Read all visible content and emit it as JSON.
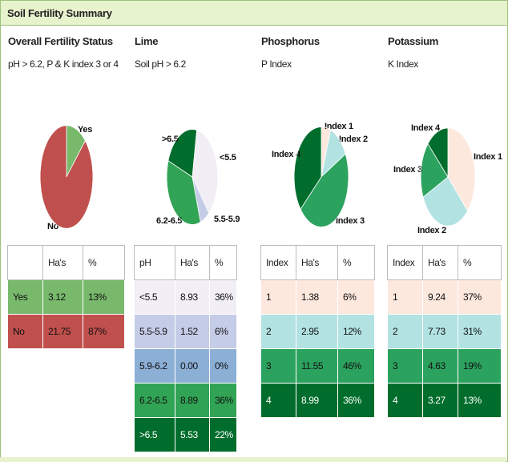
{
  "header": {
    "title": "Soil Fertility Summary"
  },
  "colors": {
    "green_light": "#78b96c",
    "red": "#c0504d",
    "lavender": "#f1eef6",
    "blue_lavender": "#c5cce7",
    "steel_blue": "#8cafd6",
    "green_mid": "#31a354",
    "green_dark": "#006d2c",
    "peach": "#fde8de",
    "light_cyan": "#b2e2e2",
    "teal_green": "#2ca25f"
  },
  "chart_data": [
    {
      "type": "pie",
      "title": "Overall Fertility Status",
      "subtitle": "pH > 6.2, P & K index 3 or 4",
      "slices": [
        {
          "label": "Yes",
          "value": 3.12,
          "color": "#78b96c"
        },
        {
          "label": "No",
          "value": 21.75,
          "color": "#c0504d"
        }
      ],
      "table": {
        "columns": [
          "",
          "Ha's",
          "%"
        ],
        "rows": [
          {
            "cells": [
              "Yes",
              "3.12",
              "13%"
            ],
            "bg": "#78b96c",
            "fg": "#111111"
          },
          {
            "cells": [
              "No",
              "21.75",
              "87%"
            ],
            "bg": "#c0504d",
            "fg": "#111111"
          }
        ]
      }
    },
    {
      "type": "pie",
      "title": "Lime",
      "subtitle": "Soil pH > 6.2",
      "slices": [
        {
          "label": "<5.5",
          "value": 8.93,
          "color": "#f1eef6"
        },
        {
          "label": "5.5-5.9",
          "value": 1.52,
          "color": "#c5cce7"
        },
        {
          "label": "5.9-6.2",
          "value": 0.0,
          "color": "#8cafd6"
        },
        {
          "label": "6.2-6.5",
          "value": 8.89,
          "color": "#31a354"
        },
        {
          "label": ">6.5",
          "value": 5.53,
          "color": "#006d2c"
        }
      ],
      "table": {
        "columns": [
          "pH",
          "Ha's",
          "%"
        ],
        "rows": [
          {
            "cells": [
              "<5.5",
              "8.93",
              "36%"
            ],
            "bg": "#f1eef6",
            "fg": "#111111"
          },
          {
            "cells": [
              "5.5-5.9",
              "1.52",
              "6%"
            ],
            "bg": "#c5cce7",
            "fg": "#111111"
          },
          {
            "cells": [
              "5.9-6.2",
              "0.00",
              "0%"
            ],
            "bg": "#8cafd6",
            "fg": "#111111"
          },
          {
            "cells": [
              "6.2-6.5",
              "8.89",
              "36%"
            ],
            "bg": "#31a354",
            "fg": "#111111"
          },
          {
            "cells": [
              ">6.5",
              "5.53",
              "22%"
            ],
            "bg": "#006d2c",
            "fg": "#ffffff"
          }
        ]
      }
    },
    {
      "type": "pie",
      "title": "Phosphorus",
      "subtitle": "P Index",
      "slices": [
        {
          "label": "Index 1",
          "value": 1.38,
          "color": "#fde8de"
        },
        {
          "label": "Index 2",
          "value": 2.95,
          "color": "#b2e2e2"
        },
        {
          "label": "Index 3",
          "value": 11.55,
          "color": "#2ca25f"
        },
        {
          "label": "Index 4",
          "value": 8.99,
          "color": "#006d2c"
        }
      ],
      "table": {
        "columns": [
          "Index",
          "Ha's",
          "%"
        ],
        "rows": [
          {
            "cells": [
              "1",
              "1.38",
              "6%"
            ],
            "bg": "#fde8de",
            "fg": "#111111"
          },
          {
            "cells": [
              "2",
              "2.95",
              "12%"
            ],
            "bg": "#b2e2e2",
            "fg": "#111111"
          },
          {
            "cells": [
              "3",
              "11.55",
              "46%"
            ],
            "bg": "#2ca25f",
            "fg": "#111111"
          },
          {
            "cells": [
              "4",
              "8.99",
              "36%"
            ],
            "bg": "#006d2c",
            "fg": "#ffffff"
          }
        ]
      }
    },
    {
      "type": "pie",
      "title": "Potassium",
      "subtitle": "K Index",
      "slices": [
        {
          "label": "Index 1",
          "value": 9.24,
          "color": "#fde8de"
        },
        {
          "label": "Index 2",
          "value": 7.73,
          "color": "#b2e2e2"
        },
        {
          "label": "Index 3",
          "value": 4.63,
          "color": "#2ca25f"
        },
        {
          "label": "Index 4",
          "value": 3.27,
          "color": "#006d2c"
        }
      ],
      "table": {
        "columns": [
          "Index",
          "Ha's",
          "%"
        ],
        "rows": [
          {
            "cells": [
              "1",
              "9.24",
              "37%"
            ],
            "bg": "#fde8de",
            "fg": "#111111"
          },
          {
            "cells": [
              "2",
              "7.73",
              "31%"
            ],
            "bg": "#b2e2e2",
            "fg": "#111111"
          },
          {
            "cells": [
              "3",
              "4.63",
              "19%"
            ],
            "bg": "#2ca25f",
            "fg": "#111111"
          },
          {
            "cells": [
              "4",
              "3.27",
              "13%"
            ],
            "bg": "#006d2c",
            "fg": "#ffffff"
          }
        ]
      }
    }
  ]
}
